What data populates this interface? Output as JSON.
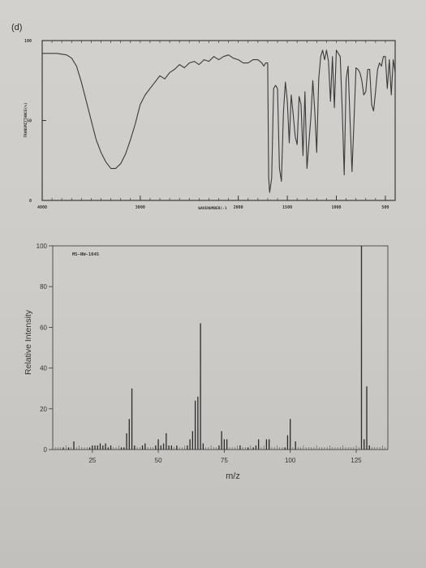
{
  "panel_label": "(d)",
  "chart_data": [
    {
      "type": "line",
      "name": "ir-spectrum",
      "xlabel": "WAVENUMBER(-1",
      "ylabel": "TRANSMITTANCE(%)",
      "xlim": [
        4000,
        400
      ],
      "ylim": [
        0,
        100
      ],
      "x_ticks": [
        "4000",
        "3000",
        "2000",
        "1500",
        "1000",
        "500"
      ],
      "x_tick_values": [
        4000,
        3000,
        2000,
        1500,
        1000,
        500
      ],
      "y_ticks": [
        "100",
        "50",
        "0"
      ],
      "y_tick_values": [
        100,
        50,
        0
      ],
      "x": [
        4000,
        3850,
        3750,
        3700,
        3650,
        3600,
        3550,
        3500,
        3450,
        3400,
        3350,
        3300,
        3250,
        3200,
        3150,
        3100,
        3050,
        3000,
        2950,
        2900,
        2850,
        2800,
        2750,
        2700,
        2650,
        2600,
        2550,
        2500,
        2450,
        2400,
        2350,
        2300,
        2250,
        2200,
        2150,
        2100,
        2050,
        2000,
        1950,
        1900,
        1850,
        1800,
        1760,
        1740,
        1720,
        1700,
        1690,
        1680,
        1660,
        1640,
        1620,
        1600,
        1580,
        1560,
        1540,
        1520,
        1500,
        1480,
        1460,
        1440,
        1420,
        1400,
        1380,
        1360,
        1340,
        1320,
        1300,
        1280,
        1260,
        1240,
        1220,
        1200,
        1180,
        1160,
        1140,
        1120,
        1100,
        1080,
        1060,
        1040,
        1020,
        1000,
        980,
        960,
        940,
        920,
        900,
        880,
        860,
        840,
        820,
        800,
        780,
        760,
        740,
        720,
        700,
        680,
        660,
        640,
        620,
        600,
        580,
        560,
        540,
        520,
        500,
        480,
        460,
        440,
        420,
        400
      ],
      "y": [
        92,
        92,
        91,
        89,
        84,
        74,
        62,
        50,
        38,
        30,
        24,
        20,
        20,
        23,
        29,
        38,
        48,
        60,
        66,
        70,
        74,
        78,
        76,
        80,
        82,
        85,
        83,
        86,
        87,
        85,
        88,
        87,
        90,
        88,
        90,
        91,
        89,
        88,
        86,
        86,
        88,
        88,
        86,
        84,
        86,
        86,
        14,
        5,
        14,
        70,
        72,
        70,
        20,
        12,
        55,
        74,
        62,
        36,
        66,
        54,
        40,
        35,
        65,
        60,
        28,
        68,
        20,
        36,
        52,
        75,
        56,
        30,
        76,
        90,
        94,
        88,
        94,
        87,
        62,
        90,
        58,
        94,
        92,
        90,
        56,
        16,
        76,
        84,
        50,
        18,
        50,
        83,
        82,
        80,
        75,
        66,
        68,
        82,
        82,
        60,
        56,
        68,
        82,
        86,
        84,
        90,
        90,
        70,
        88,
        66,
        88,
        80
      ],
      "color": "#3a3a3a"
    },
    {
      "type": "bar",
      "name": "mass-spectrum",
      "title": "MS-NW-1045",
      "xlabel": "m/z",
      "ylabel": "Relative Intensity",
      "xlim": [
        10,
        137
      ],
      "ylim": [
        0,
        100
      ],
      "x_ticks": [
        "25",
        "50",
        "75",
        "100",
        "125"
      ],
      "x_tick_values": [
        25,
        50,
        75,
        100,
        125
      ],
      "y_ticks": [
        "0",
        "20",
        "40",
        "60",
        "80",
        "100"
      ],
      "y_tick_values": [
        0,
        20,
        40,
        60,
        80,
        100
      ],
      "x": [
        14,
        16,
        18,
        24,
        25,
        26,
        27,
        28,
        29,
        30,
        31,
        32,
        36,
        37,
        38,
        39,
        40,
        41,
        44,
        45,
        49,
        50,
        51,
        52,
        53,
        54,
        55,
        57,
        61,
        62,
        63,
        64,
        65,
        66,
        67,
        73,
        74,
        75,
        76,
        81,
        84,
        86,
        87,
        88,
        91,
        92,
        98,
        99,
        100,
        102,
        127,
        128,
        129,
        130
      ],
      "values": [
        1,
        1,
        4,
        1,
        2,
        2,
        2,
        3,
        2,
        3,
        1,
        2,
        1,
        1,
        8,
        15,
        30,
        2,
        2,
        3,
        2,
        5,
        2,
        3,
        8,
        2,
        2,
        2,
        2,
        5,
        9,
        24,
        26,
        62,
        3,
        2,
        9,
        5,
        5,
        2,
        1,
        1,
        2,
        5,
        5,
        5,
        1,
        7,
        15,
        4,
        100,
        5,
        31,
        2
      ],
      "color": "#2b2b2b"
    }
  ]
}
